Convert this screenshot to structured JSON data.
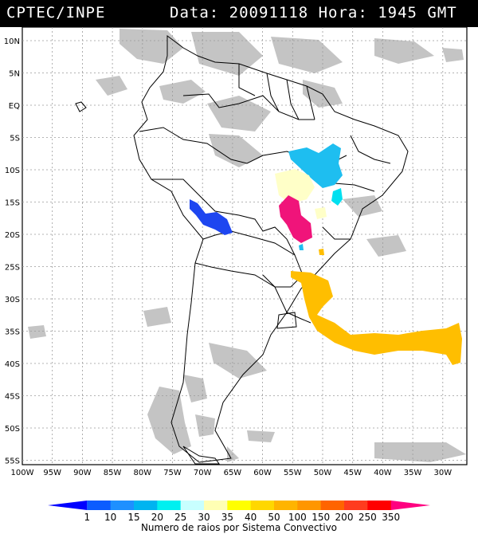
{
  "header": {
    "source": "CPTEC/INPE",
    "datetime": "Data: 20091118 Hora: 1945 GMT"
  },
  "map": {
    "lat_labels": [
      "10N",
      "5N",
      "EQ",
      "5S",
      "10S",
      "15S",
      "20S",
      "25S",
      "30S",
      "35S",
      "40S",
      "45S",
      "50S",
      "55S"
    ],
    "lon_labels": [
      "100W",
      "95W",
      "90W",
      "85W",
      "80W",
      "75W",
      "70W",
      "65W",
      "60W",
      "55W",
      "50W",
      "45W",
      "40W",
      "35W",
      "30W"
    ],
    "colors": {
      "land_outline": "#000000",
      "cloud_gray": "#bdbdbd",
      "grid": "#9a9a9a"
    }
  },
  "colorbar": {
    "label": "Numero de raios por Sistema Convectivo",
    "ticks": [
      "1",
      "10",
      "15",
      "20",
      "25",
      "30",
      "35",
      "40",
      "50",
      "100",
      "150",
      "200",
      "250",
      "350"
    ],
    "colors": [
      "#0000ff",
      "#0b5cff",
      "#1e90ff",
      "#00b4f0",
      "#00f0f0",
      "#c8ffff",
      "#ffffb4",
      "#ffff00",
      "#ffd700",
      "#ffb400",
      "#ff9600",
      "#ff6400",
      "#ff3c1e",
      "#ff0000",
      "#ff0080"
    ]
  },
  "systems": [
    {
      "name": "cyan-system-north",
      "color": "#1ebef0"
    },
    {
      "name": "cream-system-central",
      "color": "#ffffc8"
    },
    {
      "name": "magenta-system",
      "color": "#f0147a"
    },
    {
      "name": "blue-system-west",
      "color": "#1e46f0"
    },
    {
      "name": "gold-system-south",
      "color": "#ffbe00"
    }
  ]
}
